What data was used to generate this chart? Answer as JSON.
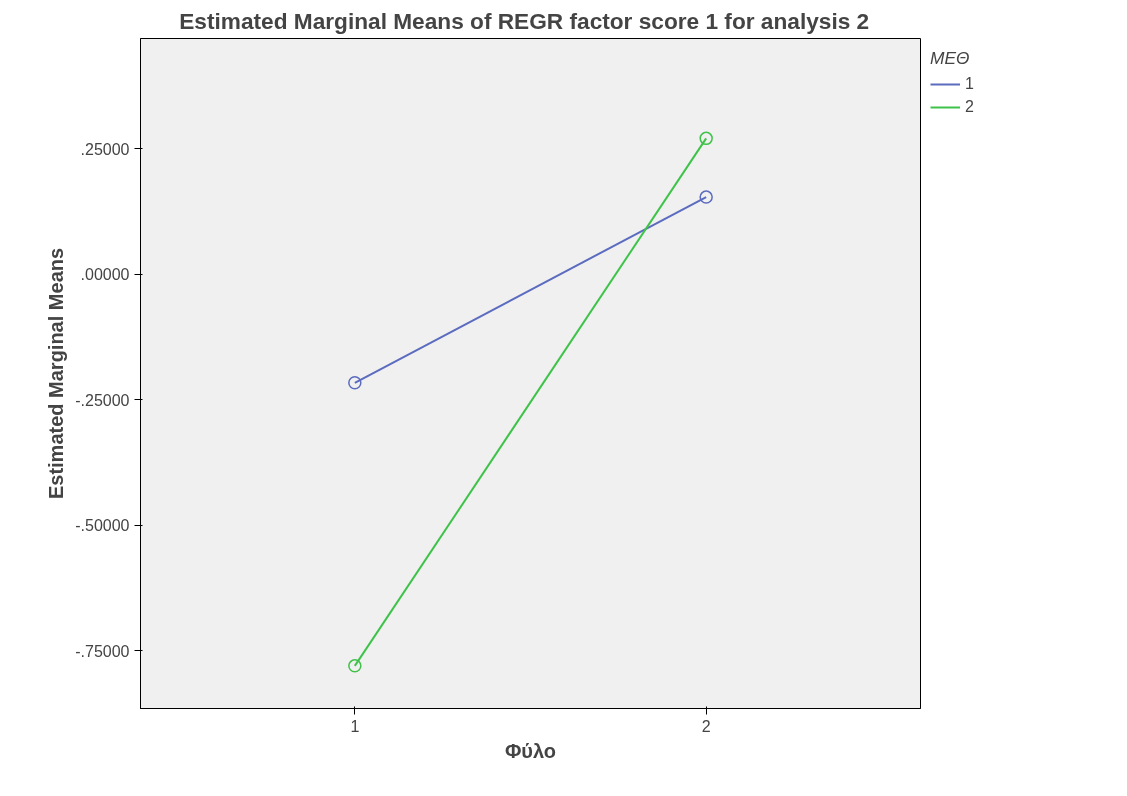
{
  "chart_data": {
    "type": "line",
    "title": "Estimated Marginal Means of REGR factor score   1 for analysis 2",
    "xlabel": "Φύλο",
    "ylabel": "Estimated Marginal Means",
    "legend_title": "ΜΕΘ",
    "categories": [
      "1",
      "2"
    ],
    "series": [
      {
        "name": "1",
        "color": "#5b6bbf",
        "values": [
          -0.216,
          0.154
        ]
      },
      {
        "name": "2",
        "color": "#3fc24a",
        "values": [
          -0.78,
          0.271
        ]
      }
    ],
    "ylim": [
      -0.865,
      0.47
    ],
    "yticks": [
      {
        "value": -0.75,
        "label": "-.75000"
      },
      {
        "value": -0.5,
        "label": "-.50000"
      },
      {
        "value": -0.25,
        "label": "-.25000"
      },
      {
        "value": 0,
        "label": ".00000"
      },
      {
        "value": 0.25,
        "label": ".25000"
      }
    ],
    "grid": false,
    "legend": "top right",
    "marker": "circle",
    "line_style": "solid"
  }
}
